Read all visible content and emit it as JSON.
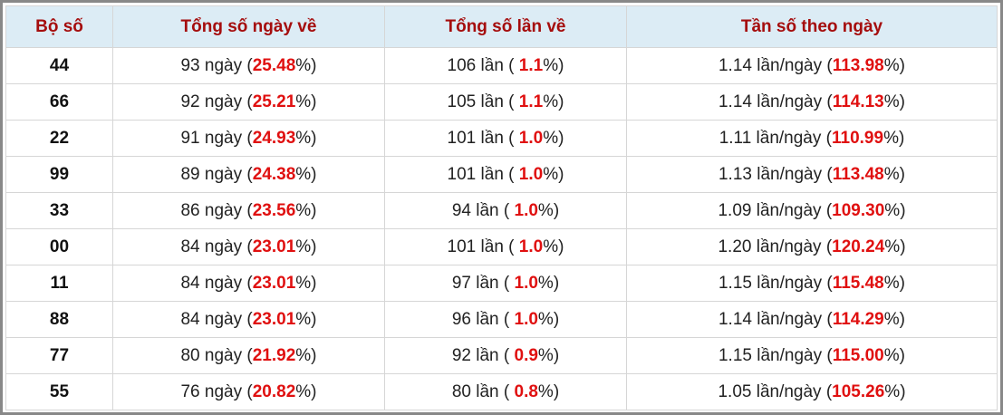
{
  "table": {
    "headers": [
      "Bộ số",
      "Tổng số ngày về",
      "Tổng số lần về",
      "Tần số theo ngày"
    ],
    "rows": [
      [
        "44",
        {
          "before": "93 ngày (",
          "value": "25.48",
          "after": "%)"
        },
        {
          "before": "106 lần ( ",
          "value": "1.1",
          "after": "%)"
        },
        {
          "before": "1.14 lần/ngày (",
          "value": "113.98",
          "after": "%)"
        }
      ],
      [
        "66",
        {
          "before": "92 ngày (",
          "value": "25.21",
          "after": "%)"
        },
        {
          "before": "105 lần ( ",
          "value": "1.1",
          "after": "%)"
        },
        {
          "before": "1.14 lần/ngày (",
          "value": "114.13",
          "after": "%)"
        }
      ],
      [
        "22",
        {
          "before": "91 ngày (",
          "value": "24.93",
          "after": "%)"
        },
        {
          "before": "101 lần ( ",
          "value": "1.0",
          "after": "%)"
        },
        {
          "before": "1.11 lần/ngày (",
          "value": "110.99",
          "after": "%)"
        }
      ],
      [
        "99",
        {
          "before": "89 ngày (",
          "value": "24.38",
          "after": "%)"
        },
        {
          "before": "101 lần ( ",
          "value": "1.0",
          "after": "%)"
        },
        {
          "before": "1.13 lần/ngày (",
          "value": "113.48",
          "after": "%)"
        }
      ],
      [
        "33",
        {
          "before": "86 ngày (",
          "value": "23.56",
          "after": "%)"
        },
        {
          "before": "94 lần ( ",
          "value": "1.0",
          "after": "%)"
        },
        {
          "before": "1.09 lần/ngày (",
          "value": "109.30",
          "after": "%)"
        }
      ],
      [
        "00",
        {
          "before": "84 ngày (",
          "value": "23.01",
          "after": "%)"
        },
        {
          "before": "101 lần ( ",
          "value": "1.0",
          "after": "%)"
        },
        {
          "before": "1.20 lần/ngày (",
          "value": "120.24",
          "after": "%)"
        }
      ],
      [
        "11",
        {
          "before": "84 ngày (",
          "value": "23.01",
          "after": "%)"
        },
        {
          "before": "97 lần ( ",
          "value": "1.0",
          "after": "%)"
        },
        {
          "before": "1.15 lần/ngày (",
          "value": "115.48",
          "after": "%)"
        }
      ],
      [
        "88",
        {
          "before": "84 ngày (",
          "value": "23.01",
          "after": "%)"
        },
        {
          "before": "96 lần ( ",
          "value": "1.0",
          "after": "%)"
        },
        {
          "before": "1.14 lần/ngày (",
          "value": "114.29",
          "after": "%)"
        }
      ],
      [
        "77",
        {
          "before": "80 ngày (",
          "value": "21.92",
          "after": "%)"
        },
        {
          "before": "92 lần ( ",
          "value": "0.9",
          "after": "%)"
        },
        {
          "before": "1.15 lần/ngày (",
          "value": "115.00",
          "after": "%)"
        }
      ],
      [
        "55",
        {
          "before": "76 ngày (",
          "value": "20.82",
          "after": "%)"
        },
        {
          "before": "80 lần ( ",
          "value": "0.8",
          "after": "%)"
        },
        {
          "before": "1.05 lần/ngày (",
          "value": "105.26",
          "after": "%)"
        }
      ]
    ]
  }
}
